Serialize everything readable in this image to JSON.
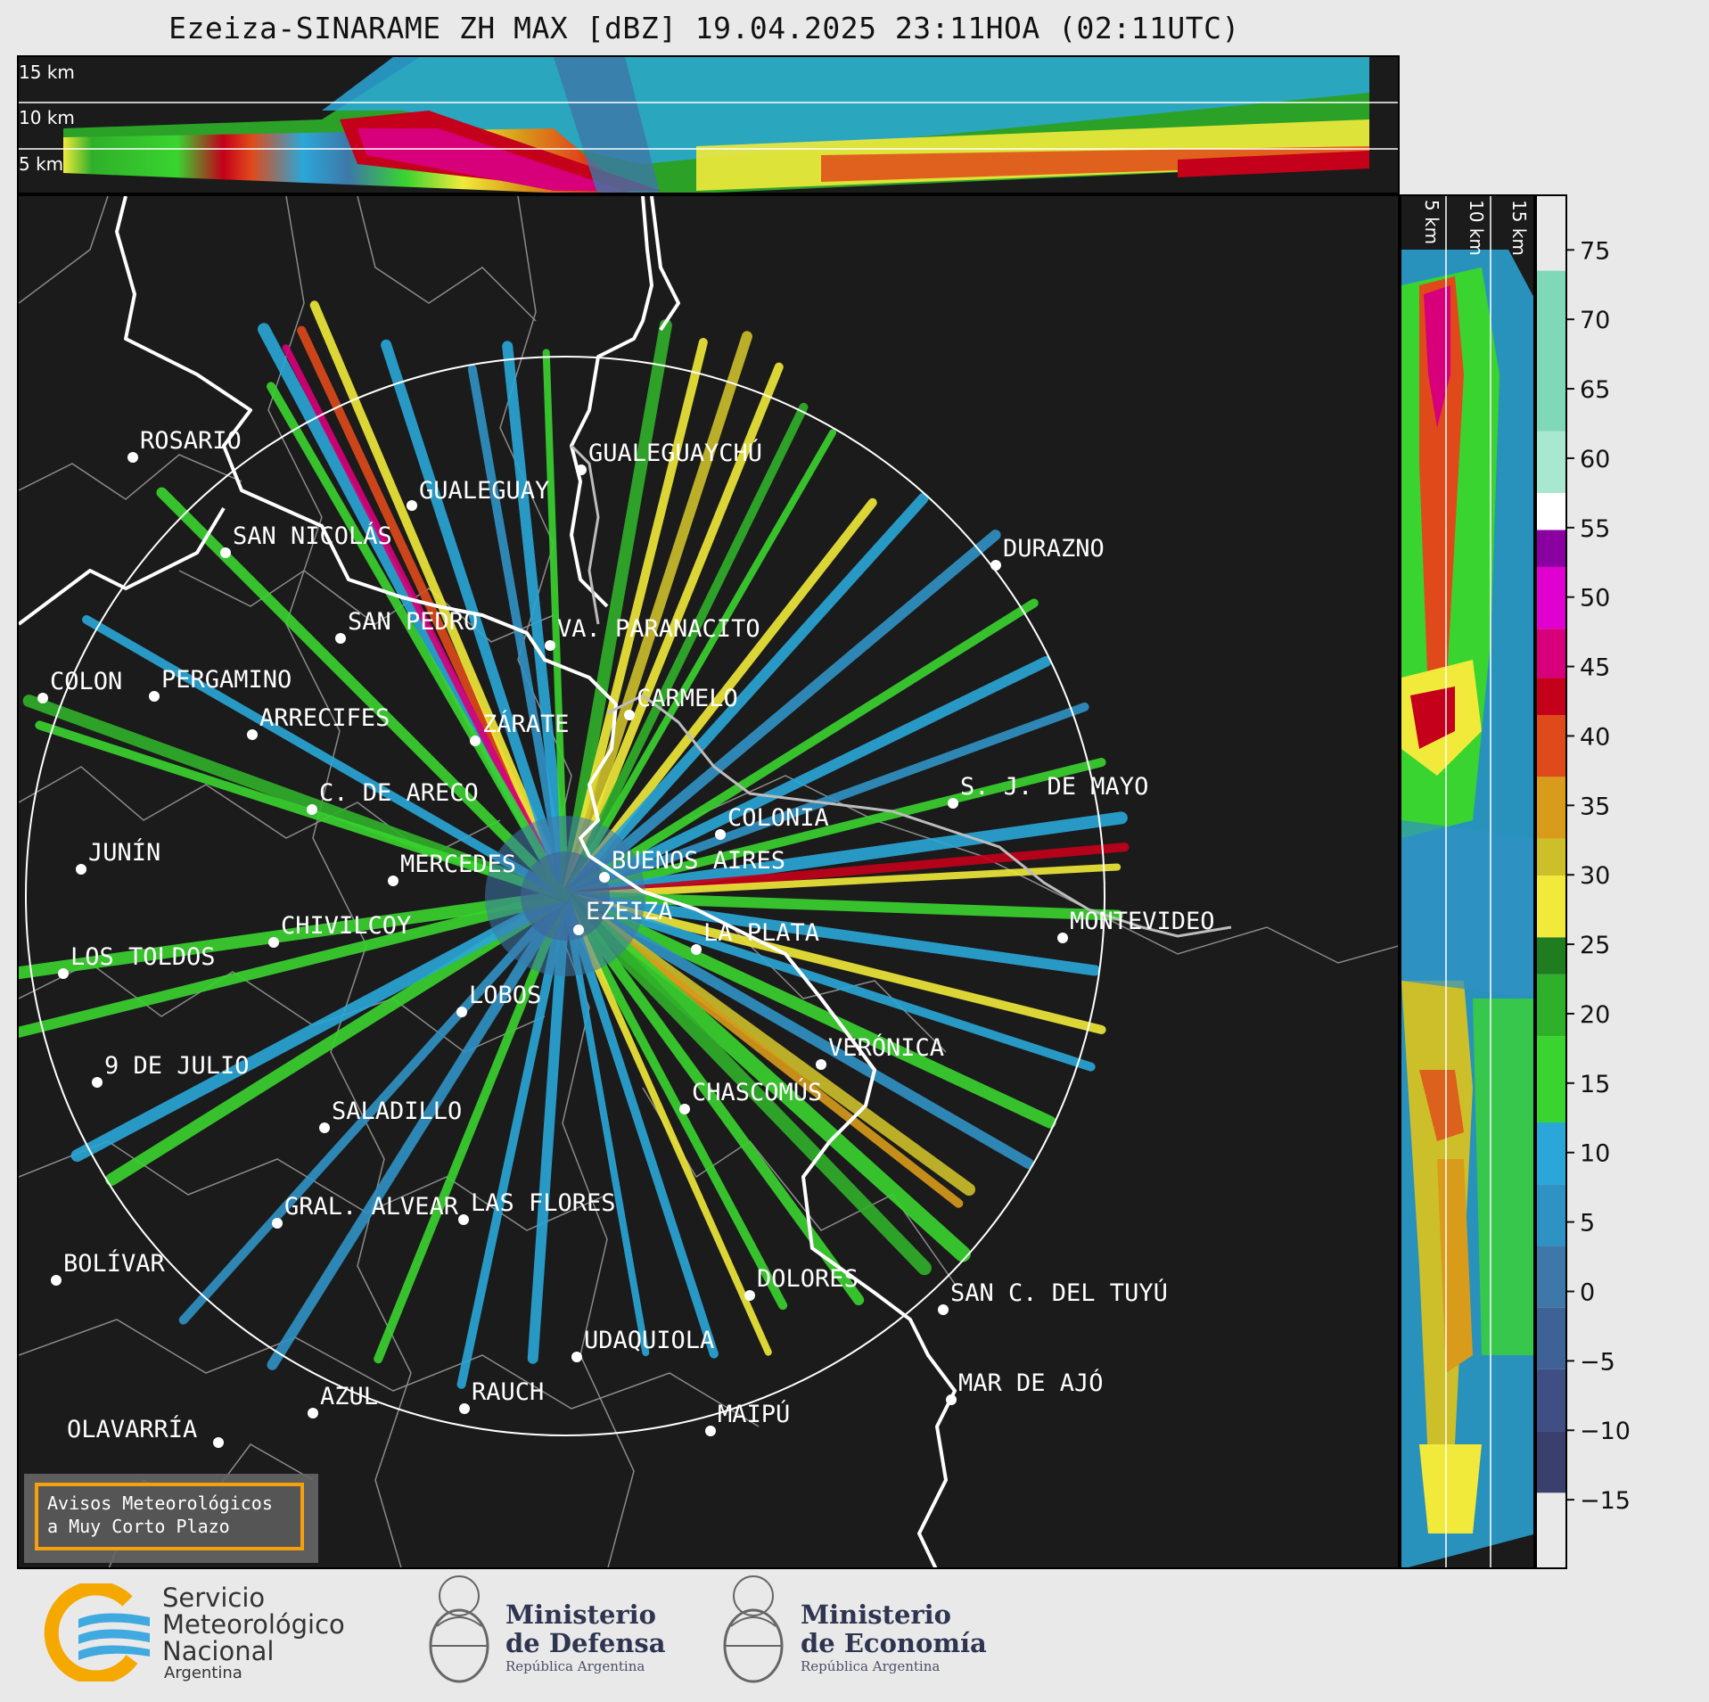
{
  "title": "Ezeiza-SINARAME ZH MAX [dBZ] 19.04.2025 23:11HOA (02:11UTC)",
  "top_panel": {
    "altitude_labels": [
      "15 km",
      "10 km",
      "5 km"
    ]
  },
  "side_panel": {
    "altitude_labels": [
      "5 km",
      "10 km",
      "15 km"
    ]
  },
  "map": {
    "radar_site": "EZEIZA",
    "cities": [
      {
        "name": "ROSARIO"
      },
      {
        "name": "GUALEGUAYCHÚ"
      },
      {
        "name": "GUALEGUAY"
      },
      {
        "name": "SAN NICOLÁS"
      },
      {
        "name": "DURAZNO"
      },
      {
        "name": "SAN PEDRO"
      },
      {
        "name": "VA. PARANACITO"
      },
      {
        "name": "COLON"
      },
      {
        "name": "PERGAMINO"
      },
      {
        "name": "CARMELO"
      },
      {
        "name": "ARRECIFES"
      },
      {
        "name": "ZÁRATE"
      },
      {
        "name": "S. J. DE MAYO"
      },
      {
        "name": "C. DE ARECO"
      },
      {
        "name": "COLONIA"
      },
      {
        "name": "JUNÍN"
      },
      {
        "name": "BUENOS AIRES"
      },
      {
        "name": "MERCEDES"
      },
      {
        "name": "EZEIZA"
      },
      {
        "name": "MONTEVIDEO"
      },
      {
        "name": "CHIVILCOY"
      },
      {
        "name": "LA PLATA"
      },
      {
        "name": "LOS TOLDOS"
      },
      {
        "name": "LOBOS"
      },
      {
        "name": "VERÓNICA"
      },
      {
        "name": "9 DE JULIO"
      },
      {
        "name": "CHASCOMÚS"
      },
      {
        "name": "SALADILLO"
      },
      {
        "name": "GRAL. ALVEAR"
      },
      {
        "name": "LAS FLORES"
      },
      {
        "name": "BOLÍVAR"
      },
      {
        "name": "DOLORES"
      },
      {
        "name": "SAN C. DEL TUYÚ"
      },
      {
        "name": "UDAQUIOLA"
      },
      {
        "name": "MAR DE AJÓ"
      },
      {
        "name": "AZUL"
      },
      {
        "name": "RAUCH"
      },
      {
        "name": "OLAVARRÍA"
      },
      {
        "name": "MAIPÚ"
      }
    ]
  },
  "colorbar": {
    "unit": "dBZ",
    "ticks": [
      "75",
      "70",
      "65",
      "60",
      "55",
      "50",
      "45",
      "40",
      "35",
      "30",
      "25",
      "20",
      "15",
      "10",
      "5",
      "0",
      "−5",
      "−10",
      "−15"
    ],
    "colors": [
      "#3b3f6e",
      "#3f4f86",
      "#3f6296",
      "#3d78a8",
      "#2f92c4",
      "#2aa7d8",
      "#39d42f",
      "#2fb02a",
      "#1f7d1f",
      "#f1ea3a",
      "#cdbf2a",
      "#d89b1a",
      "#e04a1a",
      "#c4001a",
      "#d8007a",
      "#e000d0",
      "#8a00a0",
      "#ffffff",
      "#a8e8d0",
      "#7fd8b8"
    ]
  },
  "warning_box": {
    "line1": "Avisos Meteorológicos",
    "line2": "a Muy Corto Plazo"
  },
  "footer": {
    "smn_line1": "Servicio",
    "smn_line2": "Meteorológico",
    "smn_line3": "Nacional",
    "smn_country": "Argentina",
    "defensa_line1": "Ministerio",
    "defensa_line2": "de Defensa",
    "defensa_sub": "República Argentina",
    "economia_line1": "Ministerio",
    "economia_line2": "de Economía",
    "economia_sub": "República Argentina"
  }
}
